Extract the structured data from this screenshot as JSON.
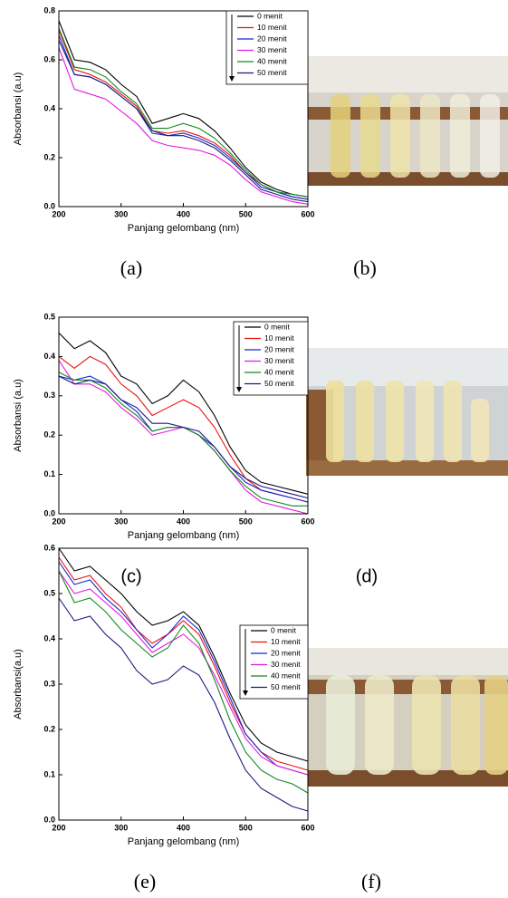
{
  "panel_labels": [
    "(a)",
    "(b)",
    "(c)",
    "(d)",
    "(e)",
    "(f)"
  ],
  "chart_data": [
    {
      "type": "line",
      "xlabel": "Panjang gelombang (nm)",
      "ylabel": "Absorbansi (a.u)",
      "x": [
        200,
        225,
        250,
        275,
        300,
        325,
        350,
        375,
        400,
        425,
        450,
        475,
        500,
        525,
        550,
        575,
        600
      ],
      "xlim": [
        200,
        600
      ],
      "xticks": [
        200,
        300,
        400,
        500,
        600
      ],
      "ylim": [
        0,
        0.8
      ],
      "yticks": [
        {
          "value": 0,
          "label": "0.0"
        },
        0.2,
        0.4,
        0.6,
        0.8
      ],
      "series": [
        {
          "name": "0 menit",
          "color": "#000000",
          "values": [
            0.76,
            0.6,
            0.59,
            0.56,
            0.5,
            0.45,
            0.34,
            0.36,
            0.38,
            0.36,
            0.31,
            0.24,
            0.16,
            0.1,
            0.07,
            0.05,
            0.04
          ]
        },
        {
          "name": "10 menit",
          "color": "#e8140f",
          "values": [
            0.72,
            0.56,
            0.54,
            0.51,
            0.46,
            0.41,
            0.31,
            0.3,
            0.31,
            0.29,
            0.26,
            0.21,
            0.14,
            0.09,
            0.06,
            0.04,
            0.03
          ]
        },
        {
          "name": "20 menit",
          "color": "#1428d0",
          "values": [
            0.7,
            0.54,
            0.53,
            0.5,
            0.45,
            0.4,
            0.3,
            0.29,
            0.3,
            0.28,
            0.25,
            0.2,
            0.14,
            0.08,
            0.06,
            0.04,
            0.03
          ]
        },
        {
          "name": "30 menit",
          "color": "#e619e0",
          "values": [
            0.65,
            0.48,
            0.46,
            0.44,
            0.39,
            0.34,
            0.27,
            0.25,
            0.24,
            0.23,
            0.21,
            0.17,
            0.11,
            0.06,
            0.04,
            0.02,
            0.01
          ]
        },
        {
          "name": "40 menit",
          "color": "#0f8a1e",
          "values": [
            0.73,
            0.57,
            0.56,
            0.53,
            0.47,
            0.42,
            0.32,
            0.32,
            0.34,
            0.32,
            0.28,
            0.22,
            0.15,
            0.09,
            0.06,
            0.05,
            0.04
          ]
        },
        {
          "name": "50 menit",
          "color": "#1a1a80",
          "values": [
            0.68,
            0.54,
            0.53,
            0.5,
            0.45,
            0.4,
            0.31,
            0.29,
            0.29,
            0.27,
            0.24,
            0.19,
            0.13,
            0.07,
            0.05,
            0.03,
            0.02
          ]
        }
      ]
    },
    {
      "type": "line",
      "xlabel": "Panjang gelombang (nm)",
      "ylabel": "Absorbansi (a.u)",
      "x": [
        200,
        225,
        250,
        275,
        300,
        325,
        350,
        375,
        400,
        425,
        450,
        475,
        500,
        525,
        550,
        575,
        600
      ],
      "xlim": [
        200,
        600
      ],
      "xticks": [
        200,
        300,
        400,
        500,
        600
      ],
      "ylim": [
        0,
        0.5
      ],
      "yticks": [
        {
          "value": 0,
          "label": "0.0"
        },
        0.1,
        0.2,
        0.3,
        0.4,
        0.5
      ],
      "series": [
        {
          "name": "0 menit",
          "color": "#000000",
          "values": [
            0.46,
            0.42,
            0.44,
            0.41,
            0.35,
            0.33,
            0.28,
            0.3,
            0.34,
            0.31,
            0.25,
            0.17,
            0.11,
            0.08,
            0.07,
            0.06,
            0.05
          ]
        },
        {
          "name": "10 menit",
          "color": "#e8140f",
          "values": [
            0.4,
            0.37,
            0.4,
            0.38,
            0.33,
            0.3,
            0.25,
            0.27,
            0.29,
            0.27,
            0.22,
            0.15,
            0.09,
            0.06,
            0.05,
            0.04,
            0.03
          ]
        },
        {
          "name": "20 menit",
          "color": "#1428d0",
          "values": [
            0.35,
            0.34,
            0.35,
            0.33,
            0.29,
            0.26,
            0.21,
            0.22,
            0.22,
            0.2,
            0.17,
            0.12,
            0.08,
            0.06,
            0.05,
            0.04,
            0.03
          ]
        },
        {
          "name": "30 menit",
          "color": "#e619e0",
          "values": [
            0.39,
            0.33,
            0.33,
            0.31,
            0.27,
            0.24,
            0.2,
            0.21,
            0.22,
            0.2,
            0.16,
            0.11,
            0.06,
            0.03,
            0.02,
            0.01,
            0.0
          ]
        },
        {
          "name": "40 menit",
          "color": "#0f8a1e",
          "values": [
            0.36,
            0.34,
            0.34,
            0.32,
            0.28,
            0.25,
            0.21,
            0.22,
            0.22,
            0.2,
            0.16,
            0.11,
            0.07,
            0.04,
            0.03,
            0.02,
            0.02
          ]
        },
        {
          "name": "50 menit",
          "color": "#1a1a80",
          "values": [
            0.35,
            0.33,
            0.34,
            0.33,
            0.29,
            0.27,
            0.23,
            0.23,
            0.22,
            0.21,
            0.17,
            0.12,
            0.09,
            0.07,
            0.06,
            0.05,
            0.04
          ]
        }
      ]
    },
    {
      "type": "line",
      "xlabel": "Panjang gelombang (nm)",
      "ylabel": "Absorbansi(a.u)",
      "x": [
        200,
        225,
        250,
        275,
        300,
        325,
        350,
        375,
        400,
        425,
        450,
        475,
        500,
        525,
        550,
        575,
        600
      ],
      "xlim": [
        200,
        600
      ],
      "xticks": [
        200,
        300,
        400,
        500,
        600
      ],
      "ylim": [
        0,
        0.6
      ],
      "yticks": [
        {
          "value": 0,
          "label": "0.0"
        },
        0.1,
        0.2,
        0.3,
        0.4,
        0.5,
        0.6
      ],
      "series": [
        {
          "name": "0 menit",
          "color": "#000000",
          "values": [
            0.6,
            0.55,
            0.56,
            0.53,
            0.5,
            0.46,
            0.43,
            0.44,
            0.46,
            0.43,
            0.36,
            0.28,
            0.21,
            0.17,
            0.15,
            0.14,
            0.13
          ]
        },
        {
          "name": "10 menit",
          "color": "#e8140f",
          "values": [
            0.58,
            0.53,
            0.54,
            0.5,
            0.47,
            0.42,
            0.39,
            0.41,
            0.44,
            0.41,
            0.34,
            0.26,
            0.19,
            0.15,
            0.13,
            0.12,
            0.11
          ]
        },
        {
          "name": "20 menit",
          "color": "#1428d0",
          "values": [
            0.57,
            0.52,
            0.53,
            0.49,
            0.46,
            0.42,
            0.38,
            0.41,
            0.45,
            0.42,
            0.35,
            0.27,
            0.19,
            0.15,
            0.12,
            0.11,
            0.1
          ]
        },
        {
          "name": "30 menit",
          "color": "#e619e0",
          "values": [
            0.55,
            0.5,
            0.51,
            0.48,
            0.45,
            0.41,
            0.37,
            0.39,
            0.41,
            0.38,
            0.32,
            0.25,
            0.18,
            0.14,
            0.12,
            0.11,
            0.1
          ]
        },
        {
          "name": "40 menit",
          "color": "#0f8a1e",
          "values": [
            0.55,
            0.48,
            0.49,
            0.46,
            0.42,
            0.39,
            0.36,
            0.38,
            0.43,
            0.39,
            0.31,
            0.22,
            0.15,
            0.11,
            0.09,
            0.08,
            0.06
          ]
        },
        {
          "name": "50 menit",
          "color": "#1a1a80",
          "values": [
            0.49,
            0.44,
            0.45,
            0.41,
            0.38,
            0.33,
            0.3,
            0.31,
            0.34,
            0.32,
            0.26,
            0.18,
            0.11,
            0.07,
            0.05,
            0.03,
            0.02
          ]
        }
      ]
    }
  ]
}
